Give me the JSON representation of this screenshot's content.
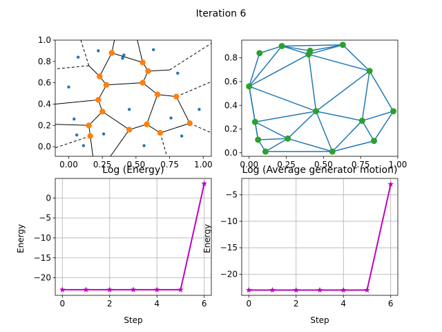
{
  "figure": {
    "suptitle": "Iteration 6"
  },
  "colors": {
    "voronoi_edge": "#000000",
    "generators": "#1f77b4",
    "vertices": "#ff7f0e",
    "delaunay_edge": "#1f77b4",
    "delaunay_nodes": "#2ca02c",
    "energy_line": "#bf00bf",
    "grid": "#b0b0b0"
  },
  "chart_data": [
    {
      "type": "scatter",
      "name": "voronoi",
      "xlim": [
        -0.1,
        1.06
      ],
      "ylim": [
        -0.09,
        1.0
      ],
      "xticks": [
        0.0,
        0.25,
        0.5,
        0.75,
        1.0
      ],
      "xtick_labels": [
        "0.00",
        "0.25",
        "0.50",
        "0.75",
        "1.00"
      ],
      "yticks": [
        0.0,
        0.2,
        0.4,
        0.6,
        0.8,
        1.0
      ],
      "ytick_labels": [
        "0.0",
        "0.2",
        "0.4",
        "0.6",
        "0.8",
        "1.0"
      ],
      "generators": [
        [
          0.07,
          0.84
        ],
        [
          0.22,
          0.9
        ],
        [
          0.41,
          0.86
        ],
        [
          0.4,
          0.83
        ],
        [
          0.63,
          0.91
        ],
        [
          0.0,
          0.56
        ],
        [
          0.81,
          0.69
        ],
        [
          0.04,
          0.26
        ],
        [
          0.45,
          0.35
        ],
        [
          0.76,
          0.27
        ],
        [
          0.97,
          0.35
        ],
        [
          0.06,
          0.11
        ],
        [
          0.26,
          0.12
        ],
        [
          0.84,
          0.1
        ],
        [
          0.11,
          0.01
        ],
        [
          0.56,
          0.01
        ]
      ],
      "vertices": [
        [
          0.32,
          0.88
        ],
        [
          0.55,
          0.79
        ],
        [
          0.59,
          0.71
        ],
        [
          0.23,
          0.66
        ],
        [
          0.28,
          0.58
        ],
        [
          0.55,
          0.6
        ],
        [
          0.66,
          0.49
        ],
        [
          0.8,
          0.47
        ],
        [
          0.22,
          0.44
        ],
        [
          0.25,
          0.33
        ],
        [
          0.15,
          0.2
        ],
        [
          0.45,
          0.16
        ],
        [
          0.58,
          0.21
        ],
        [
          0.68,
          0.13
        ],
        [
          0.9,
          0.22
        ],
        [
          0.16,
          0.1
        ]
      ],
      "edges": [
        [
          [
            0.32,
            0.88
          ],
          [
            0.55,
            0.79
          ]
        ],
        [
          [
            0.55,
            0.79
          ],
          [
            0.59,
            0.71
          ]
        ],
        [
          [
            0.32,
            0.88
          ],
          [
            0.23,
            0.66
          ]
        ],
        [
          [
            0.23,
            0.66
          ],
          [
            0.28,
            0.58
          ]
        ],
        [
          [
            0.28,
            0.58
          ],
          [
            0.55,
            0.6
          ]
        ],
        [
          [
            0.55,
            0.6
          ],
          [
            0.59,
            0.71
          ]
        ],
        [
          [
            0.55,
            0.6
          ],
          [
            0.66,
            0.49
          ]
        ],
        [
          [
            0.66,
            0.49
          ],
          [
            0.8,
            0.47
          ]
        ],
        [
          [
            0.28,
            0.58
          ],
          [
            0.22,
            0.44
          ]
        ],
        [
          [
            0.22,
            0.44
          ],
          [
            0.25,
            0.33
          ]
        ],
        [
          [
            0.25,
            0.33
          ],
          [
            0.15,
            0.2
          ]
        ],
        [
          [
            0.15,
            0.2
          ],
          [
            0.16,
            0.1
          ]
        ],
        [
          [
            0.25,
            0.33
          ],
          [
            0.45,
            0.16
          ]
        ],
        [
          [
            0.45,
            0.16
          ],
          [
            0.58,
            0.21
          ]
        ],
        [
          [
            0.58,
            0.21
          ],
          [
            0.66,
            0.49
          ]
        ],
        [
          [
            0.58,
            0.21
          ],
          [
            0.68,
            0.13
          ]
        ],
        [
          [
            0.68,
            0.13
          ],
          [
            0.9,
            0.22
          ]
        ],
        [
          [
            0.8,
            0.47
          ],
          [
            0.9,
            0.22
          ]
        ],
        [
          [
            0.22,
            0.44
          ],
          [
            -0.1,
            0.4
          ]
        ],
        [
          [
            0.23,
            0.66
          ],
          [
            0.15,
            0.76
          ]
        ],
        [
          [
            0.32,
            0.88
          ],
          [
            0.34,
            1.0
          ]
        ],
        [
          [
            0.55,
            0.79
          ],
          [
            0.51,
            1.0
          ]
        ],
        [
          [
            0.59,
            0.71
          ],
          [
            0.75,
            0.72
          ]
        ],
        [
          [
            0.15,
            0.2
          ],
          [
            -0.1,
            0.21
          ]
        ],
        [
          [
            0.16,
            0.1
          ],
          [
            0.18,
            -0.09
          ]
        ],
        [
          [
            0.45,
            0.16
          ],
          [
            0.31,
            -0.09
          ]
        ]
      ],
      "dashed_edges": [
        [
          [
            0.15,
            0.76
          ],
          [
            -0.1,
            0.73
          ]
        ],
        [
          [
            0.15,
            0.76
          ],
          [
            0.09,
            1.0
          ]
        ],
        [
          [
            0.75,
            0.72
          ],
          [
            1.06,
            0.97
          ]
        ],
        [
          [
            0.8,
            0.47
          ],
          [
            1.06,
            0.61
          ]
        ],
        [
          [
            0.9,
            0.22
          ],
          [
            1.06,
            0.13
          ]
        ],
        [
          [
            0.16,
            0.1
          ],
          [
            -0.1,
            -0.01
          ]
        ],
        [
          [
            0.68,
            0.13
          ],
          [
            0.73,
            -0.09
          ]
        ]
      ]
    },
    {
      "type": "network",
      "name": "delaunay",
      "xlim": [
        -0.05,
        1.0
      ],
      "ylim": [
        -0.03,
        0.95
      ],
      "xticks": [
        0.0,
        0.25,
        0.5,
        0.75,
        1.0
      ],
      "xtick_labels": [
        "0.00",
        "0.25",
        "0.50",
        "0.75",
        "1.00"
      ],
      "yticks": [
        0.0,
        0.2,
        0.4,
        0.6,
        0.8
      ],
      "ytick_labels": [
        "0.0",
        "0.2",
        "0.4",
        "0.6",
        "0.8"
      ],
      "nodes": [
        [
          0.07,
          0.84
        ],
        [
          0.22,
          0.9
        ],
        [
          0.41,
          0.86
        ],
        [
          0.4,
          0.83
        ],
        [
          0.63,
          0.91
        ],
        [
          0.0,
          0.56
        ],
        [
          0.81,
          0.69
        ],
        [
          0.04,
          0.26
        ],
        [
          0.45,
          0.35
        ],
        [
          0.76,
          0.27
        ],
        [
          0.97,
          0.35
        ],
        [
          0.06,
          0.11
        ],
        [
          0.26,
          0.12
        ],
        [
          0.84,
          0.1
        ],
        [
          0.11,
          0.01
        ],
        [
          0.56,
          0.01
        ]
      ],
      "edges": [
        [
          0,
          1
        ],
        [
          1,
          2
        ],
        [
          1,
          3
        ],
        [
          1,
          4
        ],
        [
          2,
          4
        ],
        [
          3,
          4
        ],
        [
          0,
          5
        ],
        [
          1,
          5
        ],
        [
          3,
          5
        ],
        [
          4,
          6
        ],
        [
          3,
          6
        ],
        [
          5,
          8
        ],
        [
          3,
          8
        ],
        [
          6,
          8
        ],
        [
          6,
          9
        ],
        [
          6,
          10
        ],
        [
          9,
          10
        ],
        [
          10,
          13
        ],
        [
          9,
          13
        ],
        [
          8,
          9
        ],
        [
          5,
          7
        ],
        [
          7,
          8
        ],
        [
          7,
          11
        ],
        [
          5,
          11
        ],
        [
          11,
          12
        ],
        [
          7,
          12
        ],
        [
          8,
          12
        ],
        [
          11,
          14
        ],
        [
          12,
          14
        ],
        [
          14,
          15
        ],
        [
          12,
          15
        ],
        [
          8,
          15
        ],
        [
          9,
          15
        ],
        [
          13,
          15
        ]
      ]
    },
    {
      "type": "line",
      "name": "energy",
      "title": "Log (Energy)",
      "xlabel": "Step",
      "ylabel": "Energy",
      "xlim": [
        -0.3,
        6.3
      ],
      "ylim": [
        -24.4,
        4.9
      ],
      "xticks": [
        0,
        2,
        4,
        6
      ],
      "yticks": [
        -20,
        -15,
        -10,
        -5,
        0
      ],
      "x": [
        0,
        1,
        2,
        3,
        4,
        5,
        6
      ],
      "y": [
        -23.0,
        -23.0,
        -23.0,
        -23.0,
        -23.0,
        -23.0,
        3.6
      ]
    },
    {
      "type": "line",
      "name": "motion",
      "title": "Log (Average generator motion)",
      "xlabel": "Step",
      "ylabel": "Energy",
      "xlim": [
        -0.3,
        6.3
      ],
      "ylim": [
        -24.0,
        -1.9
      ],
      "xticks": [
        0,
        2,
        4,
        6
      ],
      "yticks": [
        -20,
        -15,
        -10,
        -5
      ],
      "x": [
        0,
        1,
        2,
        3,
        4,
        5,
        6
      ],
      "y": [
        -23.0,
        -23.0,
        -23.0,
        -23.0,
        -23.0,
        -23.0,
        -3.0
      ]
    }
  ]
}
